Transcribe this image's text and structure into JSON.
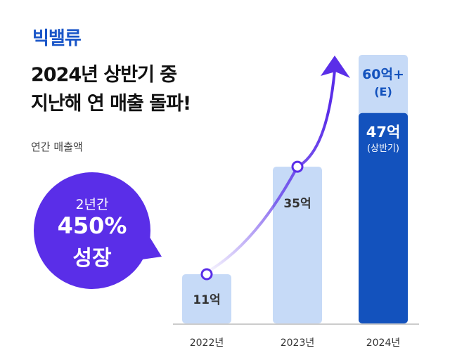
{
  "logo": "빅밸류",
  "title_line1": "2024년 상반기 중",
  "title_line2": "지난해 연 매출 돌파!",
  "subtitle": "연간 매출액",
  "callout": {
    "line1": "2년간",
    "line2": "450%",
    "line3": "성장",
    "color": "#5a2ee8"
  },
  "chart_data": {
    "type": "bar",
    "categories": [
      "2022년",
      "2023년",
      "2024년"
    ],
    "values": [
      11,
      35,
      47
    ],
    "value_labels": [
      "11억",
      "35억",
      "47억"
    ],
    "sublabel_2024": "(상반기)",
    "estimate": {
      "value": 60,
      "label": "60억+",
      "sublabel": "(E)"
    },
    "unit": "억",
    "ylim": [
      0,
      60
    ],
    "grid": false,
    "colors": {
      "bar": "#c6daf7",
      "highlight": "#1352bd",
      "arrow": "#5a2ee8",
      "axis": "#cccccc"
    }
  }
}
